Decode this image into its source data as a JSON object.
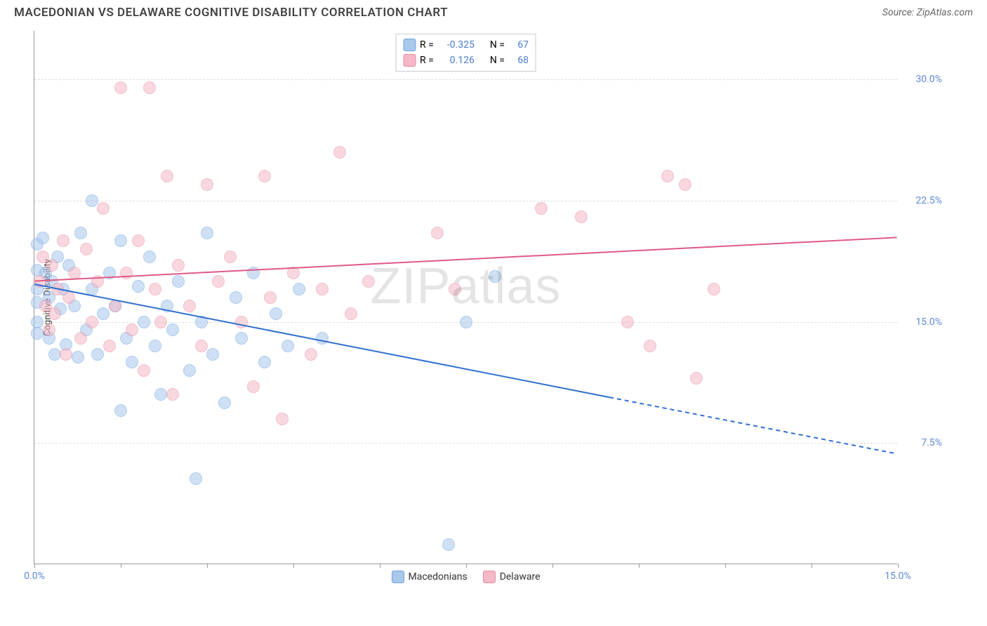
{
  "header": {
    "title": "MACEDONIAN VS DELAWARE COGNITIVE DISABILITY CORRELATION CHART",
    "source": "Source: ZipAtlas.com"
  },
  "chart": {
    "type": "scatter",
    "ylabel": "Cognitive Disability",
    "watermark": "ZIPatlas",
    "xlim": [
      0,
      15
    ],
    "ylim": [
      0,
      33
    ],
    "xtick_positions": [
      0,
      1.5,
      3.0,
      4.5,
      6.0,
      7.5,
      9.0,
      10.5,
      12.0,
      13.5,
      15.0
    ],
    "xtick_labels": {
      "0": "0.0%",
      "15": "15.0%"
    },
    "ytick_positions": [
      7.5,
      15.0,
      22.5,
      30.0
    ],
    "ytick_labels": [
      "7.5%",
      "15.0%",
      "22.5%",
      "30.0%"
    ],
    "grid_color": "#dddddd",
    "axis_color": "#999999",
    "tick_label_color": "#5b8ad6",
    "marker_radius": 9,
    "marker_opacity": 0.55,
    "series": [
      {
        "name": "Macedonians",
        "color_fill": "#a8c8ec",
        "color_stroke": "#6fa3e0",
        "R": "-0.325",
        "N": "67",
        "trend": {
          "x1": 0,
          "y1": 17.3,
          "x2": 15,
          "y2": 6.8,
          "solid_until_x": 10.0,
          "stroke": "#2f6fd0",
          "width": 2
        },
        "points": [
          [
            0.05,
            19.8
          ],
          [
            0.05,
            18.2
          ],
          [
            0.05,
            17.0
          ],
          [
            0.05,
            16.2
          ],
          [
            0.05,
            15.0
          ],
          [
            0.05,
            14.3
          ],
          [
            0.15,
            20.2
          ],
          [
            0.2,
            18.0
          ],
          [
            0.25,
            16.5
          ],
          [
            0.25,
            14.0
          ],
          [
            0.3,
            17.5
          ],
          [
            0.35,
            13.0
          ],
          [
            0.4,
            19.0
          ],
          [
            0.45,
            15.8
          ],
          [
            0.5,
            17.0
          ],
          [
            0.55,
            13.6
          ],
          [
            0.6,
            18.5
          ],
          [
            0.7,
            16.0
          ],
          [
            0.75,
            12.8
          ],
          [
            0.8,
            20.5
          ],
          [
            0.9,
            14.5
          ],
          [
            1.0,
            22.5
          ],
          [
            1.0,
            17.0
          ],
          [
            1.1,
            13.0
          ],
          [
            1.2,
            15.5
          ],
          [
            1.3,
            18.0
          ],
          [
            1.4,
            16.0
          ],
          [
            1.5,
            9.5
          ],
          [
            1.5,
            20.0
          ],
          [
            1.6,
            14.0
          ],
          [
            1.7,
            12.5
          ],
          [
            1.8,
            17.2
          ],
          [
            1.9,
            15.0
          ],
          [
            2.0,
            19.0
          ],
          [
            2.1,
            13.5
          ],
          [
            2.2,
            10.5
          ],
          [
            2.3,
            16.0
          ],
          [
            2.4,
            14.5
          ],
          [
            2.5,
            17.5
          ],
          [
            2.7,
            12.0
          ],
          [
            2.8,
            5.3
          ],
          [
            2.9,
            15.0
          ],
          [
            3.0,
            20.5
          ],
          [
            3.1,
            13.0
          ],
          [
            3.3,
            10.0
          ],
          [
            3.5,
            16.5
          ],
          [
            3.6,
            14.0
          ],
          [
            3.8,
            18.0
          ],
          [
            4.0,
            12.5
          ],
          [
            4.2,
            15.5
          ],
          [
            4.4,
            13.5
          ],
          [
            4.6,
            17.0
          ],
          [
            5.0,
            14.0
          ],
          [
            7.2,
            1.2
          ],
          [
            7.5,
            15.0
          ],
          [
            8.0,
            17.8
          ]
        ]
      },
      {
        "name": "Delaware",
        "color_fill": "#f4b8c6",
        "color_stroke": "#e88ba3",
        "R": "0.126",
        "N": "68",
        "trend": {
          "x1": 0,
          "y1": 17.5,
          "x2": 15,
          "y2": 20.2,
          "solid_until_x": 15,
          "stroke": "#e05a84",
          "width": 2
        },
        "points": [
          [
            0.1,
            17.5
          ],
          [
            0.15,
            19.0
          ],
          [
            0.2,
            16.0
          ],
          [
            0.25,
            14.5
          ],
          [
            0.3,
            18.5
          ],
          [
            0.35,
            15.5
          ],
          [
            0.4,
            17.0
          ],
          [
            0.5,
            20.0
          ],
          [
            0.55,
            13.0
          ],
          [
            0.6,
            16.5
          ],
          [
            0.7,
            18.0
          ],
          [
            0.8,
            14.0
          ],
          [
            0.9,
            19.5
          ],
          [
            1.0,
            15.0
          ],
          [
            1.1,
            17.5
          ],
          [
            1.2,
            22.0
          ],
          [
            1.3,
            13.5
          ],
          [
            1.4,
            16.0
          ],
          [
            1.5,
            29.5
          ],
          [
            1.6,
            18.0
          ],
          [
            1.7,
            14.5
          ],
          [
            1.8,
            20.0
          ],
          [
            1.9,
            12.0
          ],
          [
            2.0,
            29.5
          ],
          [
            2.1,
            17.0
          ],
          [
            2.2,
            15.0
          ],
          [
            2.3,
            24.0
          ],
          [
            2.4,
            10.5
          ],
          [
            2.5,
            18.5
          ],
          [
            2.7,
            16.0
          ],
          [
            2.9,
            13.5
          ],
          [
            3.0,
            23.5
          ],
          [
            3.2,
            17.5
          ],
          [
            3.4,
            19.0
          ],
          [
            3.6,
            15.0
          ],
          [
            3.8,
            11.0
          ],
          [
            4.0,
            24.0
          ],
          [
            4.1,
            16.5
          ],
          [
            4.3,
            9.0
          ],
          [
            4.5,
            18.0
          ],
          [
            4.8,
            13.0
          ],
          [
            5.0,
            17.0
          ],
          [
            5.3,
            25.5
          ],
          [
            5.5,
            15.5
          ],
          [
            5.8,
            17.5
          ],
          [
            7.0,
            20.5
          ],
          [
            7.3,
            17.0
          ],
          [
            8.8,
            22.0
          ],
          [
            9.5,
            21.5
          ],
          [
            10.3,
            15.0
          ],
          [
            10.7,
            13.5
          ],
          [
            11.0,
            24.0
          ],
          [
            11.3,
            23.5
          ],
          [
            11.5,
            11.5
          ],
          [
            11.8,
            17.0
          ]
        ]
      }
    ],
    "legend_bottom": [
      "Macedonians",
      "Delaware"
    ],
    "stat_legend": {
      "r_label": "R =",
      "n_label": "N =",
      "label_color": "#333333",
      "value_color": "#4a7bd0"
    }
  }
}
